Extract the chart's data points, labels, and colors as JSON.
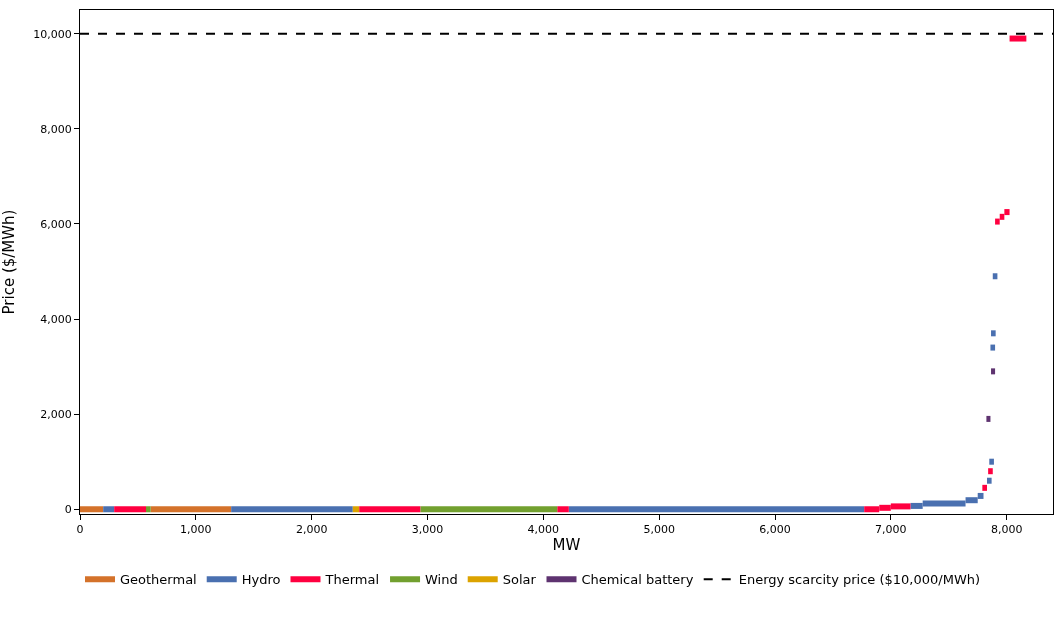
{
  "chart_data": {
    "type": "line",
    "xlabel": "MW",
    "ylabel": "Price ($/MWh)",
    "xlim": [
      0,
      8400
    ],
    "ylim": [
      -100,
      10500
    ],
    "xticks": [
      0,
      {
        "value": 1000,
        "label": "1,000"
      },
      {
        "value": 2000,
        "label": "2,000"
      },
      {
        "value": 3000,
        "label": "3,000"
      },
      {
        "value": 4000,
        "label": "4,000"
      },
      {
        "value": 5000,
        "label": "5,000"
      },
      {
        "value": 6000,
        "label": "6,000"
      },
      {
        "value": 7000,
        "label": "7,000"
      },
      {
        "value": 8000,
        "label": "8,000"
      }
    ],
    "yticks": [
      0,
      {
        "value": 2000,
        "label": "2,000"
      },
      {
        "value": 4000,
        "label": "4,000"
      },
      {
        "value": 6000,
        "label": "6,000"
      },
      {
        "value": 8000,
        "label": "8,000"
      },
      {
        "value": 10000,
        "label": "10,000"
      }
    ],
    "legend": "bottom",
    "marker": "none",
    "line_style": "solid",
    "series": [
      {
        "name": "Geothermal",
        "color": "#d4722a",
        "x": [
          0,
          200,
          610,
          1305
        ],
        "values": [
          0,
          0,
          0,
          0
        ]
      },
      {
        "name": "Hydro",
        "color": "#4a70b0",
        "x": [
          200,
          295,
          1305,
          2355,
          4220,
          6770,
          7170,
          7275,
          7275,
          7645,
          7645,
          7750,
          7750,
          7800,
          7830,
          7870,
          7850,
          7890,
          7860,
          7900,
          7865,
          7905,
          7880,
          7920
        ],
        "values": [
          0,
          0,
          0,
          0,
          0,
          0,
          70,
          70,
          120,
          120,
          190,
          190,
          280,
          280,
          600,
          600,
          1000,
          1000,
          3400,
          3400,
          3700,
          3700,
          4900,
          4900
        ]
      },
      {
        "name": "Thermal",
        "color": "#ff0040",
        "x": [
          295,
          570,
          2410,
          2940,
          4120,
          4220,
          6770,
          6900,
          6900,
          7000,
          7000,
          7170,
          7790,
          7830,
          7840,
          7880,
          7900,
          7940,
          7940,
          7980,
          7980,
          8025,
          8025,
          8170
        ],
        "values": [
          0,
          0,
          0,
          0,
          0,
          0,
          0,
          0,
          30,
          30,
          60,
          60,
          450,
          450,
          800,
          800,
          6050,
          6050,
          6150,
          6150,
          6250,
          6250,
          9900,
          9900
        ]
      },
      {
        "name": "Wind",
        "color": "#72a02f",
        "x": [
          570,
          610,
          2940,
          4120
        ],
        "values": [
          0,
          0,
          0,
          0
        ]
      },
      {
        "name": "Solar",
        "color": "#dca300",
        "x": [
          2355,
          2410
        ],
        "values": [
          0,
          0
        ]
      },
      {
        "name": "Chemical battery",
        "color": "#5e3370",
        "x": [
          7825,
          7860,
          7865,
          7900
        ],
        "values": [
          1900,
          1900,
          2900,
          2900
        ]
      }
    ],
    "ref_lines": [
      {
        "axis": "y",
        "value": 10000,
        "label": "Energy scarcity price ($10,000/MWh)",
        "color": "#000000",
        "line_style": "dashed"
      }
    ]
  }
}
